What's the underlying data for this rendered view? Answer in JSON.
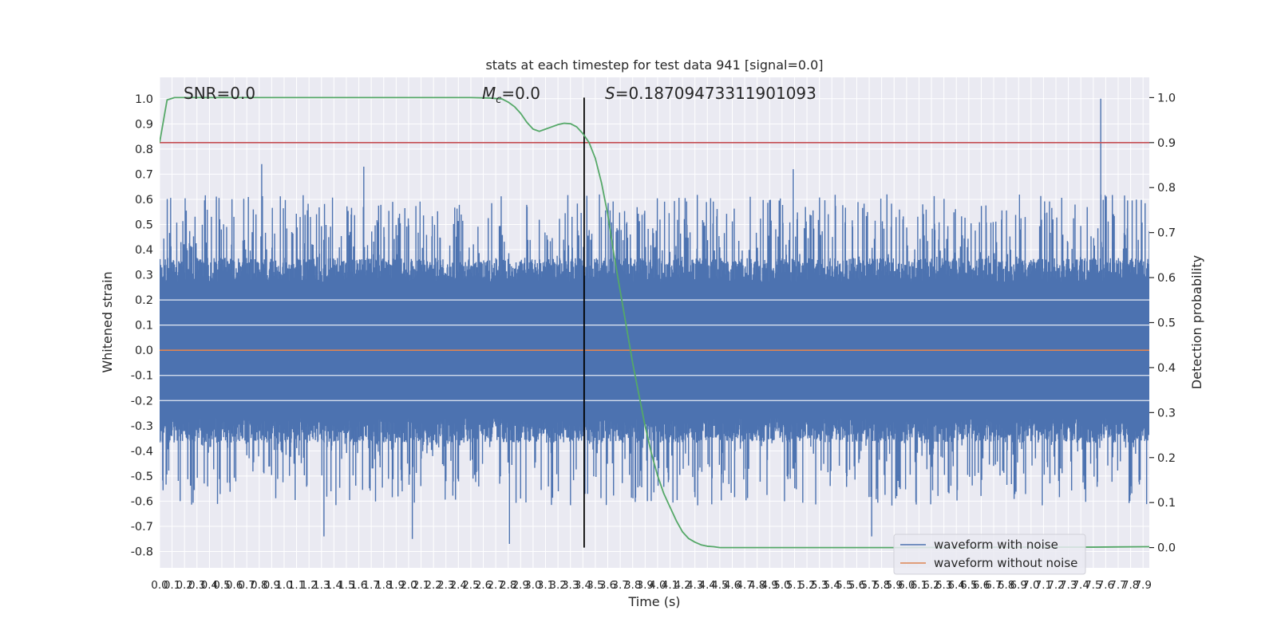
{
  "chart_data": {
    "type": "line",
    "title": "stats at each timestep for test data 941 [signal=0.0]",
    "xlabel": "Time (s)",
    "ylabel": "Whitened strain",
    "y2label": "Detection probability",
    "xlim": [
      0.0,
      7.95
    ],
    "ylim": [
      -0.865,
      1.085
    ],
    "y2lim": [
      -0.045,
      1.045
    ],
    "x_ticks": [
      0.0,
      0.1,
      0.2,
      0.3,
      0.4,
      0.5,
      0.6,
      0.7,
      0.8,
      0.9,
      1.0,
      1.1,
      1.2,
      1.3,
      1.4,
      1.5,
      1.6,
      1.7,
      1.8,
      1.9,
      2.0,
      2.1,
      2.2,
      2.3,
      2.4,
      2.5,
      2.6,
      2.7,
      2.8,
      2.9,
      3.0,
      3.1,
      3.2,
      3.3,
      3.4,
      3.5,
      3.6,
      3.7,
      3.8,
      3.9,
      4.0,
      4.1,
      4.2,
      4.3,
      4.4,
      4.5,
      4.6,
      4.7,
      4.8,
      4.9,
      5.0,
      5.1,
      5.2,
      5.3,
      5.4,
      5.5,
      5.6,
      5.7,
      5.8,
      5.9,
      6.0,
      6.1,
      6.2,
      6.3,
      6.4,
      6.5,
      6.6,
      6.7,
      6.8,
      6.9,
      7.0,
      7.1,
      7.2,
      7.3,
      7.4,
      7.5,
      7.6,
      7.7,
      7.8,
      7.9
    ],
    "y_ticks": [
      -0.8,
      -0.7,
      -0.6,
      -0.5,
      -0.4,
      -0.3,
      -0.2,
      -0.1,
      0.0,
      0.1,
      0.2,
      0.3,
      0.4,
      0.5,
      0.6,
      0.7,
      0.8,
      0.9,
      1.0
    ],
    "y2_ticks": [
      0.0,
      0.1,
      0.2,
      0.3,
      0.4,
      0.5,
      0.6,
      0.7,
      0.8,
      0.9,
      1.0
    ],
    "annotations": {
      "snr": "SNR=0.0",
      "mc_symbol": "M",
      "mc_sub": "c",
      "mc_value": "=0.0",
      "s_symbol": "S",
      "s_value": "=0.18709473311901093"
    },
    "threshold": {
      "axis": "y2",
      "value": 0.9,
      "color": "#c44e52"
    },
    "marker_time": 3.41,
    "legend": {
      "location": "lower right",
      "entries": [
        "waveform with noise",
        "waveform without noise"
      ]
    },
    "colors": {
      "noise": "#4c72b0",
      "clean": "#dd8452",
      "probability": "#55a868",
      "background": "#eaeaf2",
      "grid": "#ffffff"
    },
    "series": [
      {
        "name": "waveform with noise",
        "axis": "y",
        "kind": "dense_noise",
        "x_range": [
          0.0,
          7.95
        ],
        "amplitude_envelope": {
          "typical_max": 0.35,
          "typical_min": -0.35,
          "peak_max": 1.0,
          "peak_min": -0.77
        },
        "extreme_peaks": [
          {
            "x": 7.56,
            "y": 1.0
          },
          {
            "x": 0.82,
            "y": 0.74
          },
          {
            "x": 1.64,
            "y": 0.73
          },
          {
            "x": 5.09,
            "y": 0.72
          },
          {
            "x": 2.81,
            "y": -0.77
          },
          {
            "x": 1.32,
            "y": -0.74
          },
          {
            "x": 2.03,
            "y": -0.75
          },
          {
            "x": 5.72,
            "y": -0.74
          }
        ]
      },
      {
        "name": "waveform without noise",
        "axis": "y",
        "x": [
          0.0,
          7.95
        ],
        "y": [
          0.0,
          0.0
        ]
      },
      {
        "name": "",
        "axis": "y2",
        "x": [
          0.0,
          0.06,
          0.12,
          0.2,
          0.5,
          1.0,
          1.5,
          2.0,
          2.5,
          2.65,
          2.75,
          2.8,
          2.85,
          2.9,
          2.95,
          3.0,
          3.05,
          3.1,
          3.15,
          3.2,
          3.25,
          3.3,
          3.35,
          3.4,
          3.45,
          3.5,
          3.55,
          3.6,
          3.65,
          3.7,
          3.75,
          3.8,
          3.85,
          3.9,
          3.95,
          4.0,
          4.05,
          4.1,
          4.15,
          4.2,
          4.25,
          4.3,
          4.35,
          4.4,
          4.45,
          4.5,
          4.6,
          4.8,
          5.0,
          6.0,
          7.0,
          7.5,
          7.95
        ],
        "y": [
          0.9,
          0.995,
          1.0,
          1.0,
          1.0,
          1.0,
          1.0,
          1.0,
          1.0,
          0.999,
          0.997,
          0.99,
          0.98,
          0.965,
          0.945,
          0.93,
          0.925,
          0.93,
          0.935,
          0.94,
          0.943,
          0.942,
          0.935,
          0.92,
          0.9,
          0.865,
          0.81,
          0.74,
          0.65,
          0.57,
          0.49,
          0.41,
          0.34,
          0.27,
          0.21,
          0.16,
          0.12,
          0.09,
          0.06,
          0.035,
          0.02,
          0.012,
          0.006,
          0.003,
          0.002,
          0.0,
          0.0,
          0.0,
          0.0,
          0.0,
          0.001,
          0.001,
          0.002
        ]
      }
    ]
  }
}
